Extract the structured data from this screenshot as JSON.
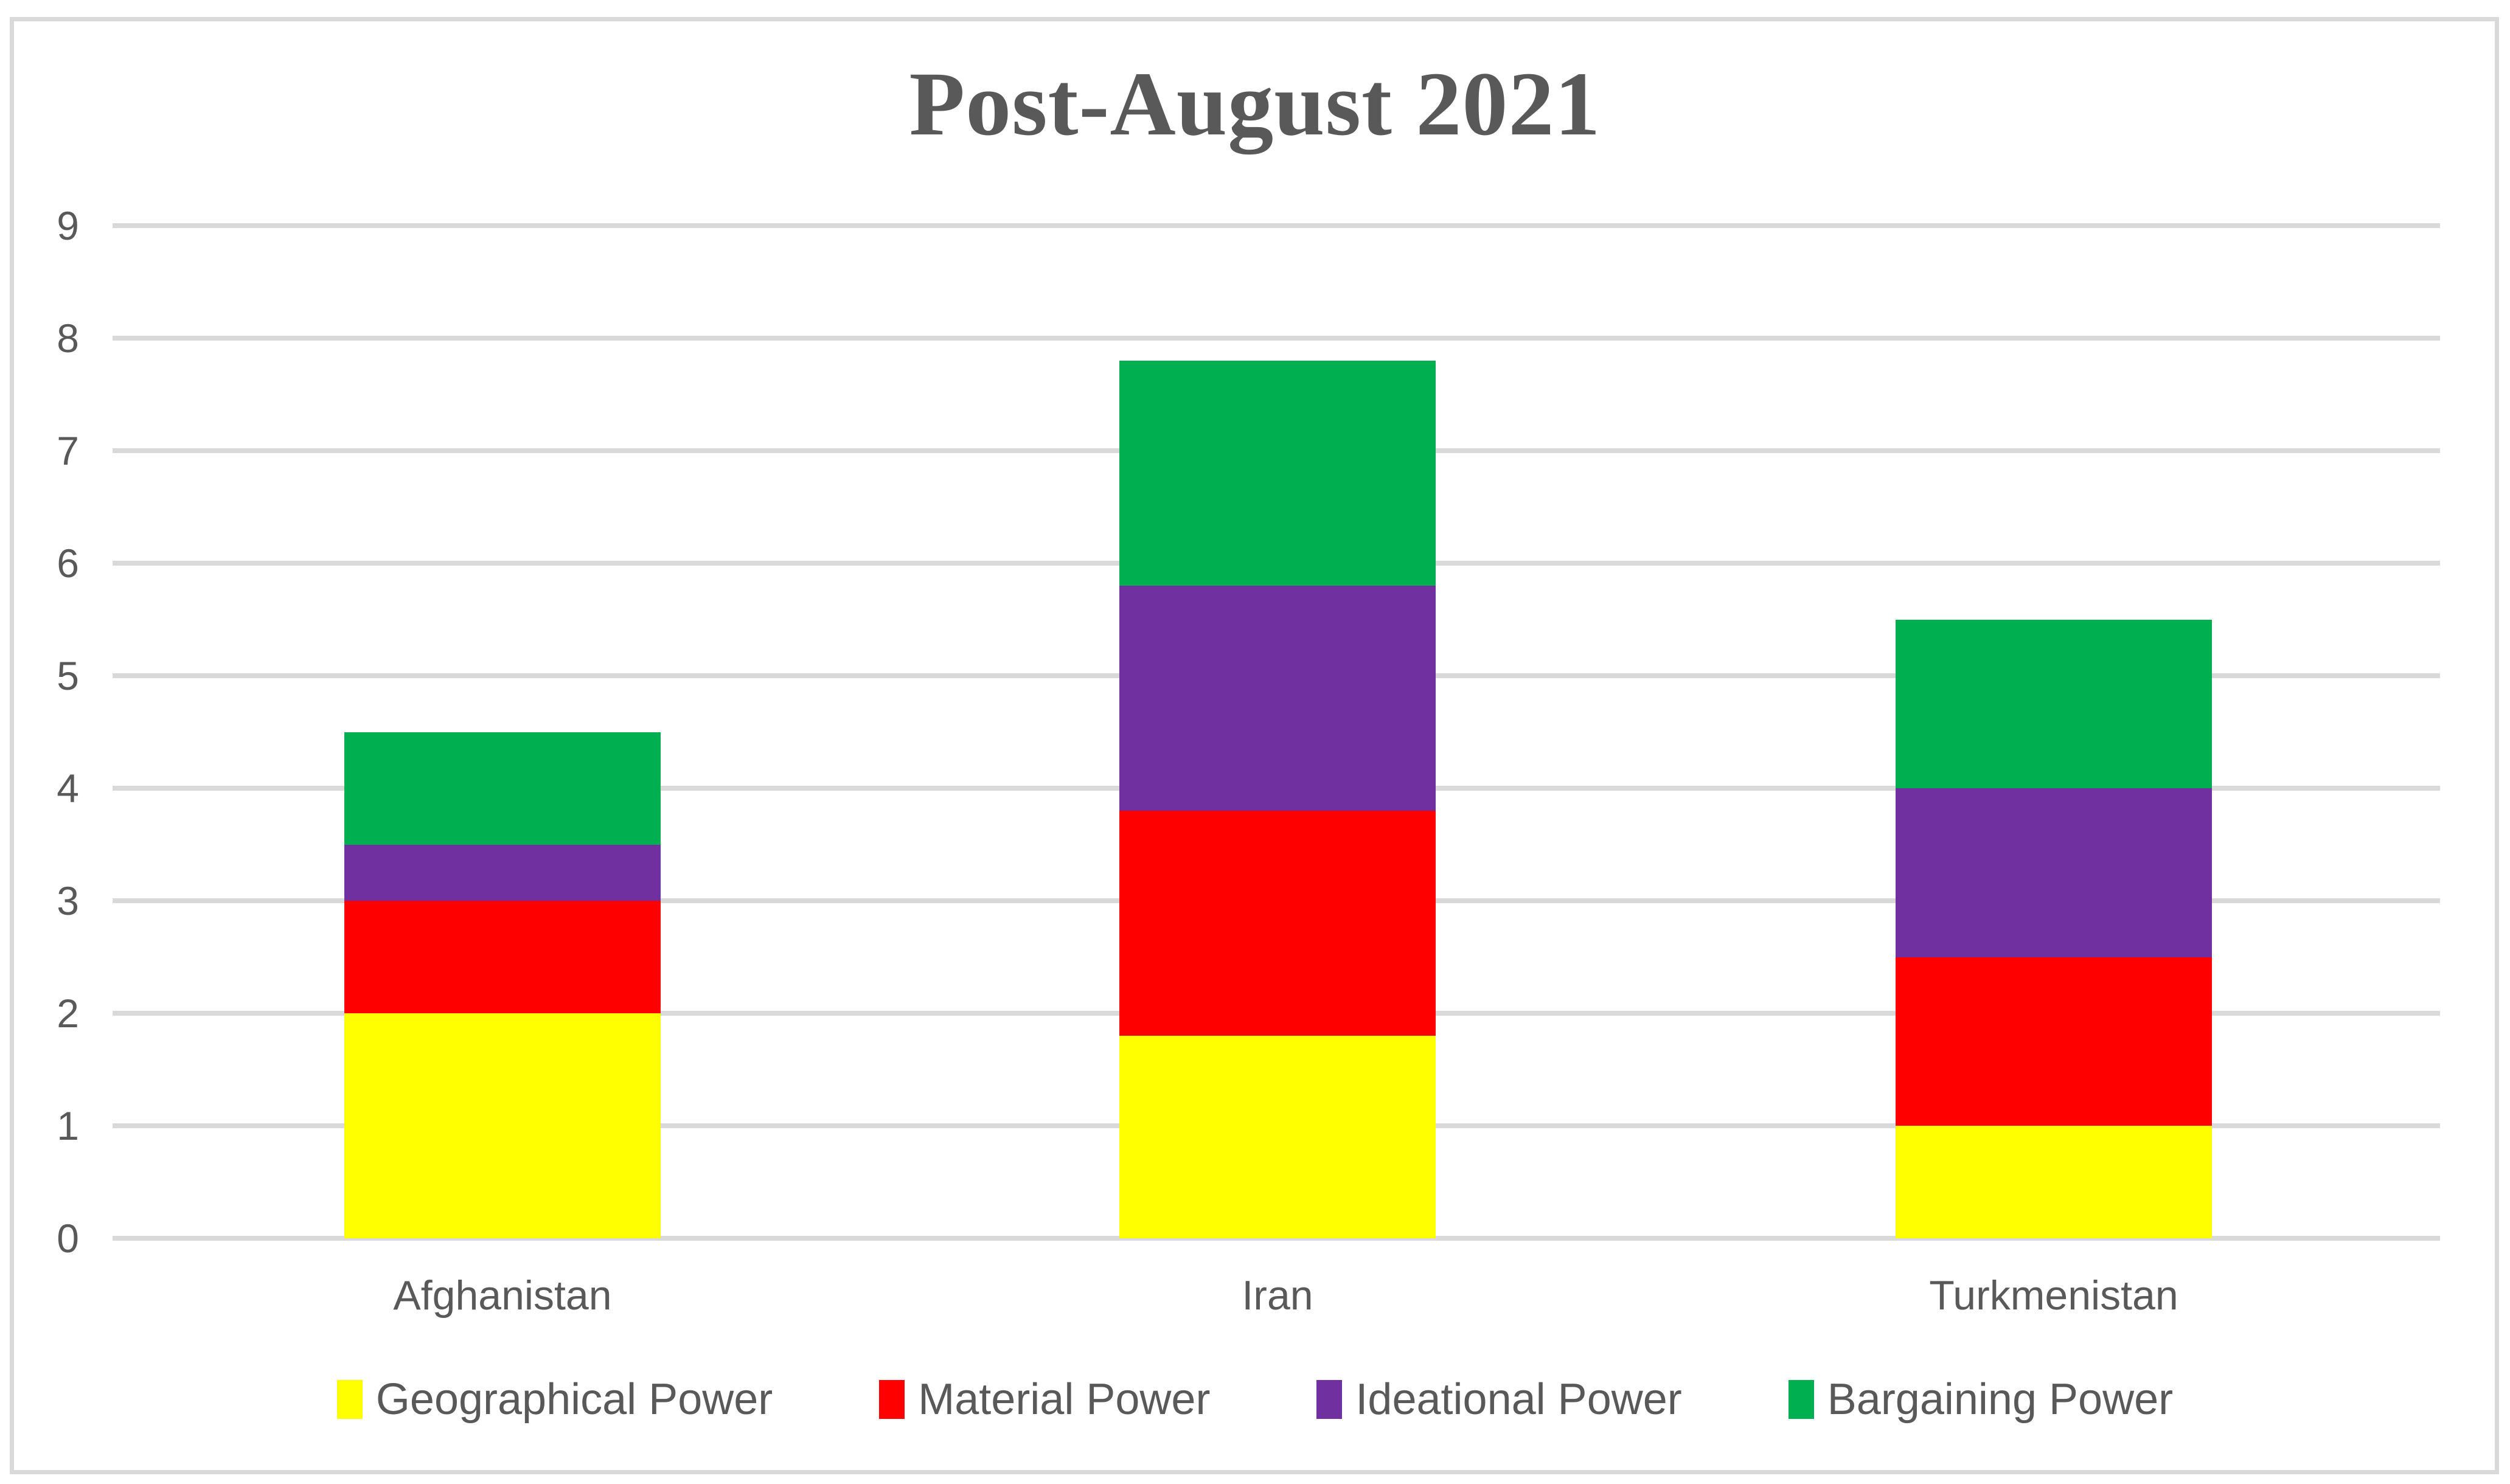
{
  "chart_data": {
    "type": "bar",
    "stacked": true,
    "title": "Post-August 2021",
    "categories": [
      "Afghanistan",
      "Iran",
      "Turkmenistan"
    ],
    "series": [
      {
        "name": "Geographical Power",
        "color": "#FFFF00",
        "values": [
          2.0,
          1.8,
          1.0
        ]
      },
      {
        "name": "Material Power",
        "color": "#FF0000",
        "values": [
          1.0,
          2.0,
          1.5
        ]
      },
      {
        "name": "Ideational Power",
        "color": "#7030A0",
        "values": [
          0.5,
          2.0,
          1.5
        ]
      },
      {
        "name": "Bargaining Power",
        "color": "#00B050",
        "values": [
          1.0,
          2.0,
          1.5
        ]
      }
    ],
    "stack_totals": [
      4.5,
      7.8,
      5.5
    ],
    "xlabel": "",
    "ylabel": "",
    "ylim": [
      0,
      9
    ],
    "y_ticks": [
      0,
      1,
      2,
      3,
      4,
      5,
      6,
      7,
      8,
      9
    ],
    "grid": "horizontal",
    "legend_position": "bottom"
  },
  "styles": {
    "text_color": "#595959",
    "grid_color": "#D9D9D9",
    "frame_border_color": "#D9D9D9",
    "background_color": "#FFFFFF"
  }
}
